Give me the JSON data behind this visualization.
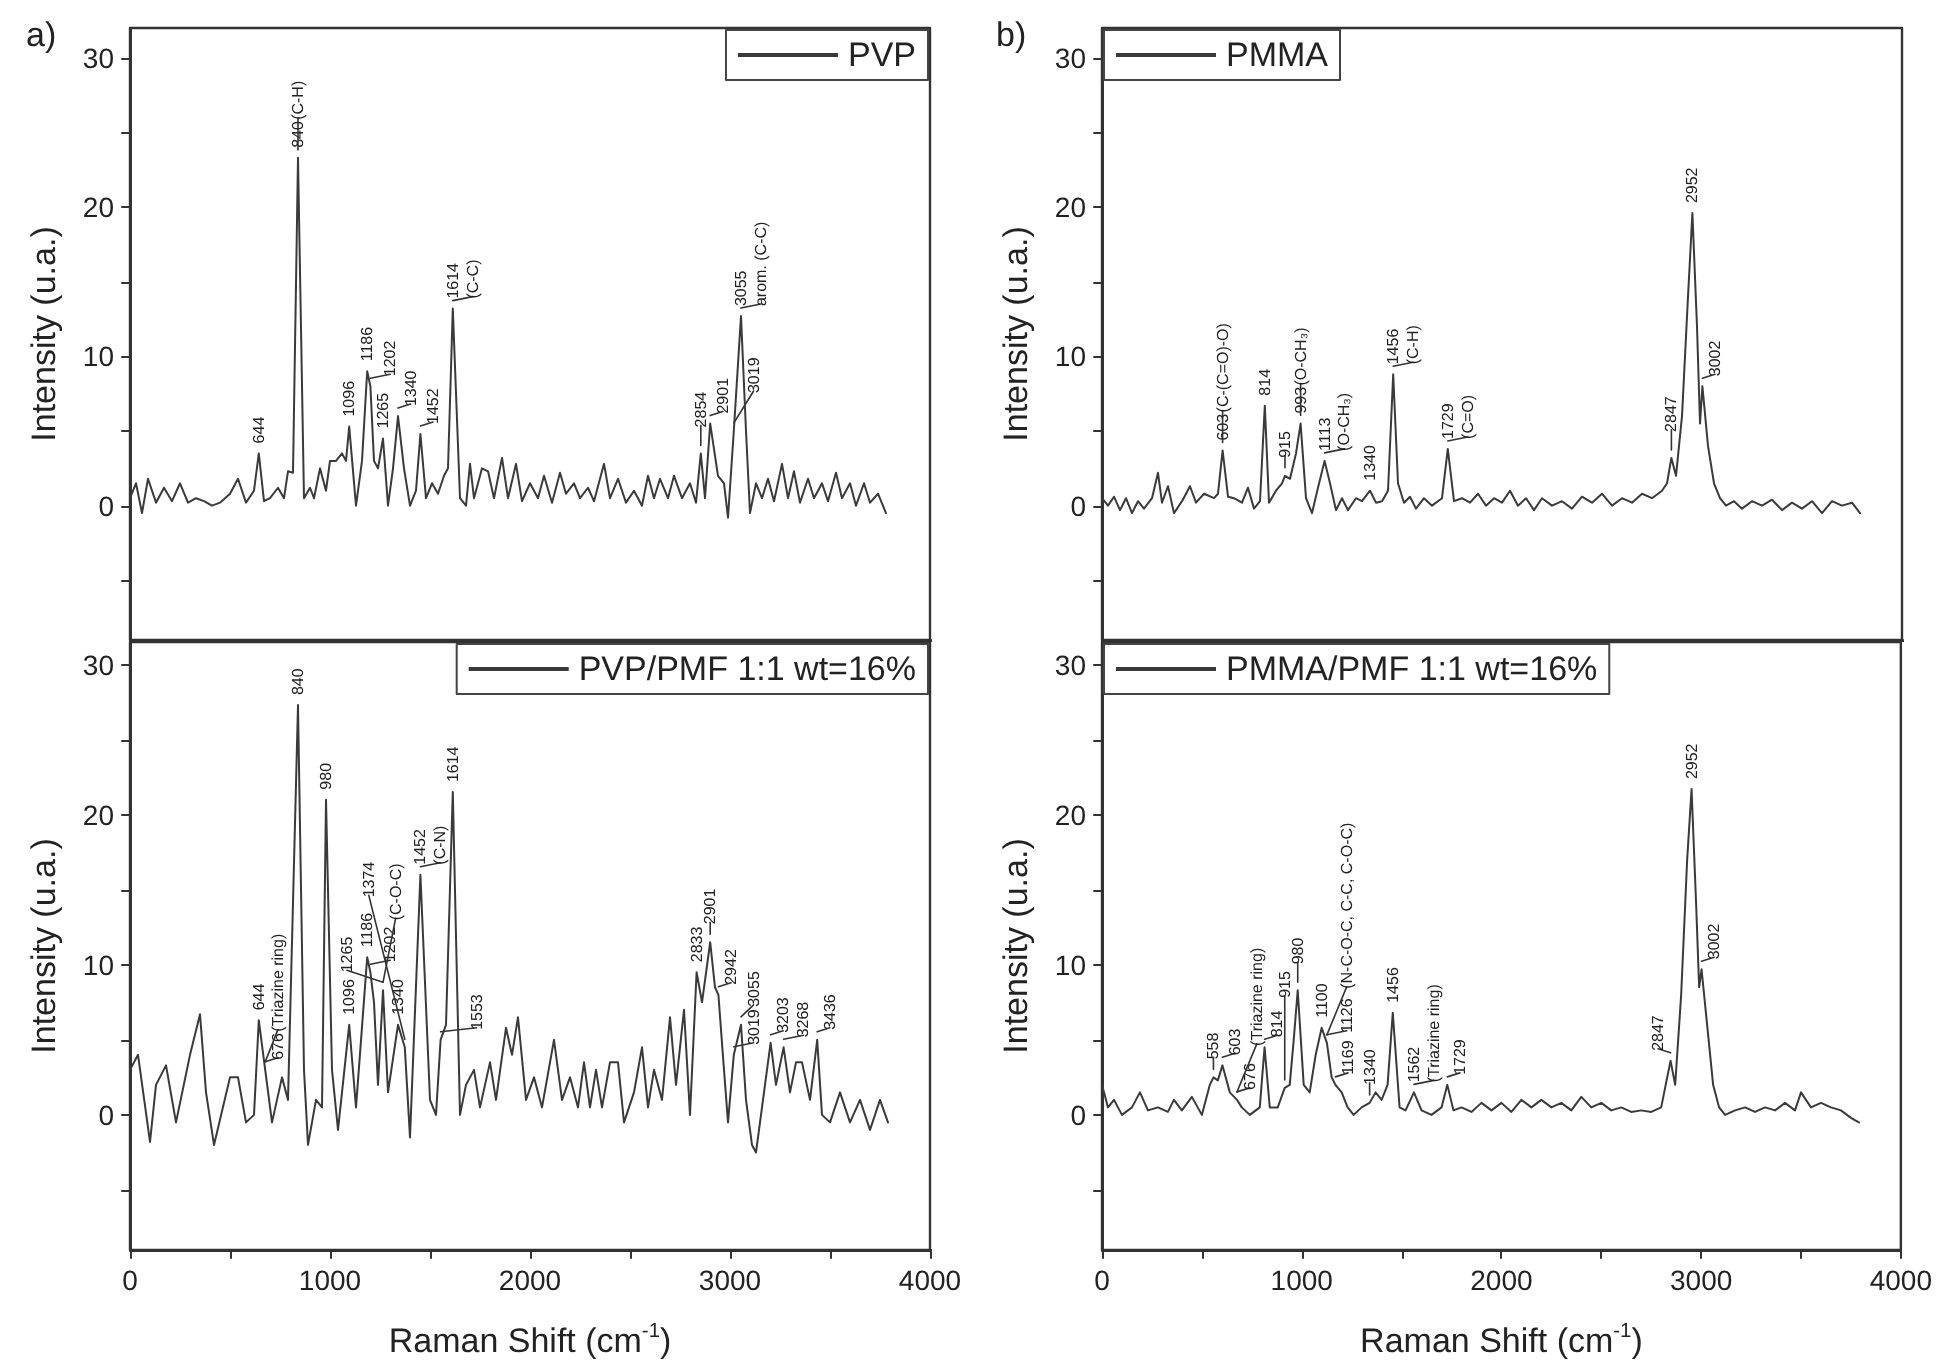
{
  "chart_data": [
    {
      "type": "line",
      "title": "a)",
      "ylabel": "Intensity (u.a.)",
      "xlim": [
        0,
        4000
      ],
      "ylim": [
        -9,
        32
      ],
      "xticks": [
        0,
        {
          "value": 500,
          "label": null
        },
        1000,
        {
          "value": 1500,
          "label": null
        },
        2000,
        {
          "value": 2500,
          "label": null
        },
        3000,
        {
          "value": 3500,
          "label": null
        },
        4000
      ],
      "yticks": [
        {
          "value": -5,
          "label": null
        },
        0,
        {
          "value": 5,
          "label": null
        },
        10,
        {
          "value": 15,
          "label": null
        },
        20,
        {
          "value": 25,
          "label": null
        },
        30
      ],
      "tick_labels": "y",
      "grid": false,
      "legend": "top right",
      "marker": "none",
      "line_style": "solid",
      "series": [
        {
          "name": "PVP",
          "color": "#3a3a3a",
          "x": [
            0,
            30,
            60,
            90,
            130,
            170,
            210,
            250,
            290,
            330,
            370,
            410,
            450,
            500,
            540,
            580,
            620,
            644,
            670,
            700,
            740,
            770,
            790,
            815,
            840,
            870,
            900,
            920,
            950,
            980,
            1000,
            1030,
            1060,
            1080,
            1096,
            1130,
            1160,
            1186,
            1202,
            1220,
            1240,
            1265,
            1290,
            1315,
            1340,
            1370,
            1400,
            1430,
            1452,
            1480,
            1510,
            1540,
            1570,
            1590,
            1614,
            1650,
            1680,
            1700,
            1720,
            1760,
            1790,
            1820,
            1860,
            1890,
            1930,
            1960,
            2000,
            2040,
            2070,
            2110,
            2150,
            2180,
            2220,
            2250,
            2290,
            2320,
            2370,
            2400,
            2440,
            2480,
            2520,
            2560,
            2590,
            2620,
            2650,
            2690,
            2720,
            2760,
            2800,
            2830,
            2854,
            2875,
            2901,
            2940,
            2970,
            2990,
            3019,
            3055,
            3080,
            3100,
            3130,
            3160,
            3190,
            3220,
            3260,
            3290,
            3320,
            3350,
            3390,
            3420,
            3460,
            3490,
            3530,
            3560,
            3600,
            3630,
            3670,
            3700,
            3740,
            3780
          ],
          "values": [
            0.5,
            1.5,
            -0.5,
            1.8,
            0.2,
            1.2,
            0.3,
            1.5,
            0.2,
            0.5,
            0.3,
            0.0,
            0.2,
            0.8,
            1.8,
            0.2,
            1.0,
            3.5,
            0.3,
            0.5,
            1.2,
            0.5,
            2.3,
            2.2,
            23.3,
            0.5,
            1.2,
            0.5,
            2.5,
            1.0,
            3.0,
            3.0,
            3.5,
            3.0,
            5.3,
            0.0,
            3.0,
            9.0,
            8.0,
            3.0,
            2.5,
            4.5,
            0.0,
            2.5,
            6.0,
            2.5,
            0.0,
            1.0,
            4.8,
            0.5,
            1.5,
            0.8,
            2.0,
            2.5,
            13.2,
            0.5,
            0.0,
            2.8,
            0.5,
            2.5,
            2.3,
            0.5,
            3.2,
            0.5,
            2.8,
            0.3,
            1.5,
            0.5,
            2.0,
            0.2,
            2.2,
            0.8,
            1.5,
            0.5,
            1.2,
            0.3,
            2.8,
            0.5,
            1.8,
            0.2,
            1.0,
            0.0,
            2.0,
            0.5,
            1.8,
            0.5,
            2.0,
            0.5,
            1.5,
            0.2,
            3.5,
            0.5,
            5.5,
            2.0,
            1.5,
            -0.8,
            5.0,
            12.7,
            5.0,
            -0.5,
            1.5,
            0.5,
            1.8,
            0.3,
            2.8,
            0.5,
            2.3,
            0.2,
            1.8,
            0.5,
            1.5,
            0.3,
            2.2,
            0.5,
            1.5,
            0.0,
            1.5,
            0.2,
            0.8,
            -0.5
          ]
        }
      ],
      "annotations": [
        {
          "text": "644",
          "x": 644,
          "y": 3.5
        },
        {
          "text": "840",
          "x": 840,
          "y": 23.3
        },
        {
          "text": "(C-H)",
          "x": 840,
          "y": 23.3
        },
        {
          "text": "1096",
          "x": 1096,
          "y": 5.3
        },
        {
          "text": "1186",
          "x": 1186,
          "y": 9
        },
        {
          "text": "1202",
          "x": 1202,
          "y": 8
        },
        {
          "text": "1265",
          "x": 1265,
          "y": 4.5
        },
        {
          "text": "1340",
          "x": 1340,
          "y": 6
        },
        {
          "text": "1452",
          "x": 1452,
          "y": 4.8
        },
        {
          "text": "1614",
          "x": 1614,
          "y": 13.2
        },
        {
          "text": "(C-C)",
          "x": 1614,
          "y": 13.2
        },
        {
          "text": "2854",
          "x": 2854,
          "y": 3.5
        },
        {
          "text": "2901",
          "x": 2901,
          "y": 5.5
        },
        {
          "text": "3019",
          "x": 3019,
          "y": 5
        },
        {
          "text": "3055",
          "x": 3055,
          "y": 12.7
        },
        {
          "text": "arom. (C-C)",
          "x": 3055,
          "y": 12.7
        }
      ]
    },
    {
      "type": "line",
      "title": "b)",
      "ylabel": "Intensity (u.a.)",
      "xlim": [
        0,
        4000
      ],
      "ylim": [
        -9,
        32
      ],
      "xticks": [
        0,
        {
          "value": 500,
          "label": null
        },
        1000,
        {
          "value": 1500,
          "label": null
        },
        2000,
        {
          "value": 2500,
          "label": null
        },
        3000,
        {
          "value": 3500,
          "label": null
        },
        4000
      ],
      "yticks": [
        {
          "value": -5,
          "label": null
        },
        0,
        {
          "value": 5,
          "label": null
        },
        10,
        {
          "value": 15,
          "label": null
        },
        20,
        {
          "value": 25,
          "label": null
        },
        30
      ],
      "tick_labels": "y",
      "grid": false,
      "legend": "top left",
      "marker": "none",
      "line_style": "solid",
      "series": [
        {
          "name": "PMMA",
          "color": "#3a3a3a",
          "x": [
            0,
            30,
            60,
            90,
            120,
            150,
            180,
            210,
            250,
            280,
            300,
            330,
            360,
            400,
            440,
            470,
            510,
            560,
            580,
            603,
            630,
            660,
            700,
            730,
            760,
            790,
            814,
            835,
            870,
            900,
            915,
            940,
            970,
            993,
            1020,
            1050,
            1080,
            1113,
            1140,
            1170,
            1200,
            1230,
            1270,
            1300,
            1340,
            1370,
            1400,
            1430,
            1456,
            1480,
            1510,
            1540,
            1570,
            1610,
            1650,
            1700,
            1729,
            1760,
            1800,
            1840,
            1880,
            1920,
            1960,
            2000,
            2040,
            2080,
            2120,
            2160,
            2200,
            2250,
            2300,
            2350,
            2400,
            2450,
            2500,
            2550,
            2600,
            2650,
            2700,
            2750,
            2800,
            2825,
            2847,
            2870,
            2900,
            2930,
            2952,
            2975,
            2990,
            3002,
            3030,
            3060,
            3090,
            3120,
            3160,
            3200,
            3250,
            3300,
            3350,
            3400,
            3450,
            3500,
            3550,
            3600,
            3650,
            3700,
            3750,
            3790
          ],
          "values": [
            0.5,
            0,
            0.6,
            -0.3,
            0.5,
            -0.5,
            0.3,
            -0.2,
            0.5,
            2.2,
            0.2,
            1.3,
            -0.5,
            0.3,
            1.3,
            0.2,
            0.8,
            0.5,
            0.8,
            3.7,
            0.6,
            0.5,
            0.2,
            1.2,
            -0.2,
            0.3,
            6.7,
            0.2,
            1.0,
            1.5,
            2.0,
            1.8,
            3.5,
            5.5,
            0.5,
            -0.5,
            1.2,
            3.0,
            1.5,
            -0.3,
            0.5,
            -0.3,
            0.5,
            0.3,
            1.0,
            0.2,
            0.3,
            1.0,
            8.8,
            1.5,
            0.2,
            0.6,
            -0.2,
            0.5,
            0.0,
            0.5,
            3.8,
            0.3,
            0.5,
            0.2,
            0.8,
            0.0,
            0.5,
            0.2,
            1.0,
            0.0,
            0.5,
            -0.3,
            0.5,
            0.0,
            0.3,
            -0.2,
            0.6,
            0.2,
            0.8,
            0.0,
            0.5,
            0.2,
            0.8,
            0.5,
            1.0,
            1.5,
            3.2,
            2.0,
            6.0,
            14.0,
            19.6,
            12.0,
            5.5,
            8.0,
            4.0,
            1.5,
            0.5,
            0.0,
            0.3,
            -0.2,
            0.3,
            0.0,
            0.4,
            -0.3,
            0.2,
            -0.2,
            0.3,
            -0.5,
            0.3,
            0.0,
            0.2,
            -0.5
          ]
        }
      ],
      "annotations": [
        {
          "text": "603",
          "x": 603,
          "y": 3.7
        },
        {
          "text": "(C-(C=O)-O)",
          "x": 603,
          "y": 3.7
        },
        {
          "text": "814",
          "x": 814,
          "y": 6.7
        },
        {
          "text": "915",
          "x": 915,
          "y": 2
        },
        {
          "text": "993",
          "x": 993,
          "y": 5.5
        },
        {
          "text": "(O-CH₃)",
          "x": 993,
          "y": 5.5
        },
        {
          "text": "1113",
          "x": 1113,
          "y": 3
        },
        {
          "text": "(O-CH₃)",
          "x": 1113,
          "y": 3
        },
        {
          "text": "1340",
          "x": 1340,
          "y": 1
        },
        {
          "text": "1456",
          "x": 1456,
          "y": 8.8
        },
        {
          "text": "(C-H)",
          "x": 1456,
          "y": 8.8
        },
        {
          "text": "1729",
          "x": 1729,
          "y": 3.8
        },
        {
          "text": "(C=O)",
          "x": 1729,
          "y": 3.8
        },
        {
          "text": "2847",
          "x": 2847,
          "y": 3.2
        },
        {
          "text": "2952",
          "x": 2952,
          "y": 19.6
        },
        {
          "text": "3002",
          "x": 3002,
          "y": 8
        }
      ]
    },
    {
      "type": "line",
      "xlabel": "Raman Shift (cm$^{-1}$)",
      "ylabel": "Intensity (u.a.)",
      "xlim": [
        0,
        4000
      ],
      "ylim": [
        -9,
        31.5
      ],
      "xticks": [
        0,
        {
          "value": 500,
          "label": null
        },
        1000,
        {
          "value": 1500,
          "label": null
        },
        2000,
        {
          "value": 2500,
          "label": null
        },
        3000,
        {
          "value": 3500,
          "label": null
        },
        4000
      ],
      "yticks": [
        {
          "value": -5,
          "label": null
        },
        0,
        {
          "value": 5,
          "label": null
        },
        10,
        {
          "value": 15,
          "label": null
        },
        20,
        {
          "value": 25,
          "label": null
        },
        30
      ],
      "grid": false,
      "legend": "top right",
      "marker": "none",
      "line_style": "solid",
      "series": [
        {
          "name": "PVP/PMF 1:1 wt=16%",
          "color": "#3a3a3a",
          "x": [
            0,
            40,
            100,
            130,
            180,
            230,
            300,
            350,
            380,
            420,
            500,
            540,
            580,
            620,
            644,
            676,
            710,
            760,
            790,
            840,
            870,
            890,
            930,
            960,
            980,
            1010,
            1040,
            1096,
            1130,
            1186,
            1202,
            1220,
            1240,
            1265,
            1290,
            1340,
            1374,
            1400,
            1452,
            1500,
            1530,
            1553,
            1580,
            1614,
            1650,
            1680,
            1720,
            1750,
            1800,
            1830,
            1880,
            1910,
            1940,
            1980,
            2020,
            2060,
            2120,
            2160,
            2200,
            2240,
            2270,
            2300,
            2330,
            2360,
            2400,
            2440,
            2470,
            2520,
            2560,
            2590,
            2620,
            2660,
            2700,
            2730,
            2770,
            2800,
            2833,
            2860,
            2901,
            2925,
            2942,
            2970,
            2990,
            3019,
            3055,
            3080,
            3110,
            3130,
            3170,
            3203,
            3230,
            3268,
            3300,
            3330,
            3360,
            3400,
            3436,
            3460,
            3500,
            3550,
            3600,
            3650,
            3700,
            3750,
            3790
          ],
          "values": [
            3,
            4,
            -1.8,
            2,
            3.3,
            -0.5,
            4,
            6.7,
            1.5,
            -2,
            2.5,
            2.5,
            -0.5,
            0,
            6.3,
            3,
            -0.5,
            2.5,
            1,
            27.3,
            3,
            -2,
            1,
            0.5,
            21,
            3,
            -1,
            6,
            0.5,
            10.5,
            9.5,
            7.5,
            2,
            8.3,
            1.5,
            6,
            4.5,
            -1.5,
            16,
            1,
            0,
            5,
            6,
            21.5,
            0,
            2,
            3,
            0.5,
            3.5,
            1,
            5.8,
            4,
            6.5,
            1,
            2.5,
            0.5,
            5,
            1,
            2.5,
            0.5,
            3.5,
            0.5,
            3,
            0.5,
            3.5,
            3.5,
            -0.5,
            1.5,
            4.5,
            0.5,
            3,
            1,
            6.5,
            2,
            7,
            0,
            9.5,
            7.5,
            11.5,
            8.5,
            8,
            3,
            -0.5,
            4,
            6,
            1,
            -2,
            -2.5,
            1.5,
            4.8,
            2,
            4.5,
            1.5,
            3.5,
            3.5,
            1,
            5,
            0,
            -0.5,
            1.5,
            -0.5,
            1,
            -1,
            1,
            -0.5
          ]
        }
      ],
      "annotations": [
        {
          "text": "644",
          "x": 644,
          "y": 6.3
        },
        {
          "text": "676",
          "x": 676,
          "y": 3
        },
        {
          "text": "(Triazine ring)",
          "x": 676,
          "y": 3
        },
        {
          "text": "840",
          "x": 840,
          "y": 27.3
        },
        {
          "text": "980",
          "x": 980,
          "y": 21
        },
        {
          "text": "1096",
          "x": 1096,
          "y": 6
        },
        {
          "text": "1186",
          "x": 1186,
          "y": 10.5
        },
        {
          "text": "1202",
          "x": 1202,
          "y": 9.5
        },
        {
          "text": "1265",
          "x": 1265,
          "y": 8.3
        },
        {
          "text": "(C-O-C)",
          "x": 1265,
          "y": 8.3
        },
        {
          "text": "1340",
          "x": 1340,
          "y": 6
        },
        {
          "text": "1374",
          "x": 1374,
          "y": 4.5
        },
        {
          "text": "1452",
          "x": 1452,
          "y": 16
        },
        {
          "text": "(C-N)",
          "x": 1452,
          "y": 16
        },
        {
          "text": "1553",
          "x": 1553,
          "y": 5
        },
        {
          "text": "1614",
          "x": 1614,
          "y": 21.5
        },
        {
          "text": "2833",
          "x": 2833,
          "y": 9.5
        },
        {
          "text": "2901",
          "x": 2901,
          "y": 11.5
        },
        {
          "text": "2942",
          "x": 2942,
          "y": 8
        },
        {
          "text": "3019",
          "x": 3019,
          "y": 4
        },
        {
          "text": "3055",
          "x": 3055,
          "y": 6
        },
        {
          "text": "3203",
          "x": 3203,
          "y": 4.8
        },
        {
          "text": "3268",
          "x": 3268,
          "y": 4.5
        },
        {
          "text": "3436",
          "x": 3436,
          "y": 5
        }
      ]
    },
    {
      "type": "line",
      "xlabel": "Raman Shift (cm$^{-1}$)",
      "ylabel": "Intensity (u.a.)",
      "xlim": [
        0,
        4000
      ],
      "ylim": [
        -9,
        31.5
      ],
      "xticks": [
        0,
        {
          "value": 500,
          "label": null
        },
        1000,
        {
          "value": 1500,
          "label": null
        },
        2000,
        {
          "value": 2500,
          "label": null
        },
        3000,
        {
          "value": 3500,
          "label": null
        },
        4000
      ],
      "yticks": [
        {
          "value": -5,
          "label": null
        },
        0,
        {
          "value": 5,
          "label": null
        },
        10,
        {
          "value": 15,
          "label": null
        },
        20,
        {
          "value": 25,
          "label": null
        },
        30
      ],
      "grid": false,
      "legend": "top left",
      "marker": "none",
      "line_style": "solid",
      "series": [
        {
          "name": "PMMA/PMF 1:1 wt=16%",
          "color": "#3a3a3a",
          "x": [
            0,
            30,
            60,
            100,
            150,
            190,
            230,
            280,
            330,
            360,
            400,
            450,
            500,
            540,
            558,
            580,
            603,
            640,
            676,
            700,
            740,
            790,
            814,
            840,
            880,
            915,
            940,
            960,
            980,
            1010,
            1040,
            1070,
            1100,
            1126,
            1150,
            1169,
            1200,
            1230,
            1260,
            1300,
            1340,
            1370,
            1400,
            1430,
            1456,
            1490,
            1520,
            1562,
            1600,
            1650,
            1700,
            1729,
            1760,
            1800,
            1850,
            1900,
            1950,
            2000,
            2050,
            2100,
            2150,
            2200,
            2250,
            2300,
            2350,
            2400,
            2450,
            2500,
            2550,
            2600,
            2650,
            2700,
            2750,
            2800,
            2830,
            2847,
            2870,
            2900,
            2930,
            2952,
            2975,
            2990,
            3002,
            3030,
            3060,
            3090,
            3120,
            3170,
            3220,
            3270,
            3320,
            3370,
            3420,
            3470,
            3500,
            3550,
            3600,
            3650,
            3700,
            3750,
            3790
          ],
          "values": [
            2,
            0.5,
            1,
            0,
            0.5,
            1.5,
            0.3,
            0.5,
            0.2,
            1,
            0.3,
            1.2,
            0,
            2,
            2.5,
            2.3,
            3.3,
            1.5,
            1,
            0.5,
            0,
            0.5,
            4.5,
            0.5,
            0.5,
            1.8,
            2,
            5,
            8.3,
            2,
            1.5,
            4,
            5.8,
            4.8,
            2.5,
            2,
            1.5,
            0.5,
            0,
            0.5,
            0.8,
            1.5,
            1,
            2,
            6.8,
            0.5,
            0.3,
            1.5,
            0.3,
            0,
            0.5,
            2,
            0.3,
            0.5,
            0.2,
            0.8,
            0.3,
            0.8,
            0.2,
            1,
            0.5,
            1,
            0.5,
            0.8,
            0.3,
            1.2,
            0.5,
            0.8,
            0.3,
            0.5,
            0.2,
            0.3,
            0.2,
            0.5,
            2.5,
            3.6,
            2,
            8,
            17,
            21.7,
            14,
            8.5,
            9.7,
            6,
            2,
            0.5,
            0,
            0.3,
            0.5,
            0.2,
            0.5,
            0.3,
            0.8,
            0.3,
            1.5,
            0.5,
            0.8,
            0.5,
            0.3,
            -0.2,
            -0.5
          ]
        }
      ],
      "annotations": [
        {
          "text": "558",
          "x": 558,
          "y": 2.5
        },
        {
          "text": "603",
          "x": 603,
          "y": 3.3
        },
        {
          "text": "676",
          "x": 676,
          "y": 1
        },
        {
          "text": "(Triazine ring)",
          "x": 676,
          "y": 1
        },
        {
          "text": "814",
          "x": 814,
          "y": 4.5
        },
        {
          "text": "915",
          "x": 915,
          "y": 1.8
        },
        {
          "text": "980",
          "x": 980,
          "y": 8.3
        },
        {
          "text": "1100",
          "x": 1100,
          "y": 5.8
        },
        {
          "text": "1126",
          "x": 1126,
          "y": 4.8
        },
        {
          "text": "(N-C-O-C, C-C, C-O-C)",
          "x": 1126,
          "y": 4.8
        },
        {
          "text": "1169",
          "x": 1169,
          "y": 2
        },
        {
          "text": "1340",
          "x": 1340,
          "y": 0.8
        },
        {
          "text": "1456",
          "x": 1456,
          "y": 6.8
        },
        {
          "text": "1562",
          "x": 1562,
          "y": 1.5
        },
        {
          "text": "(Triazine ring)",
          "x": 1562,
          "y": 1.5
        },
        {
          "text": "1729",
          "x": 1729,
          "y": 2
        },
        {
          "text": "2847",
          "x": 2847,
          "y": 3.6
        },
        {
          "text": "2952",
          "x": 2952,
          "y": 21.7
        },
        {
          "text": "3002",
          "x": 3002,
          "y": 9.7
        }
      ]
    }
  ]
}
